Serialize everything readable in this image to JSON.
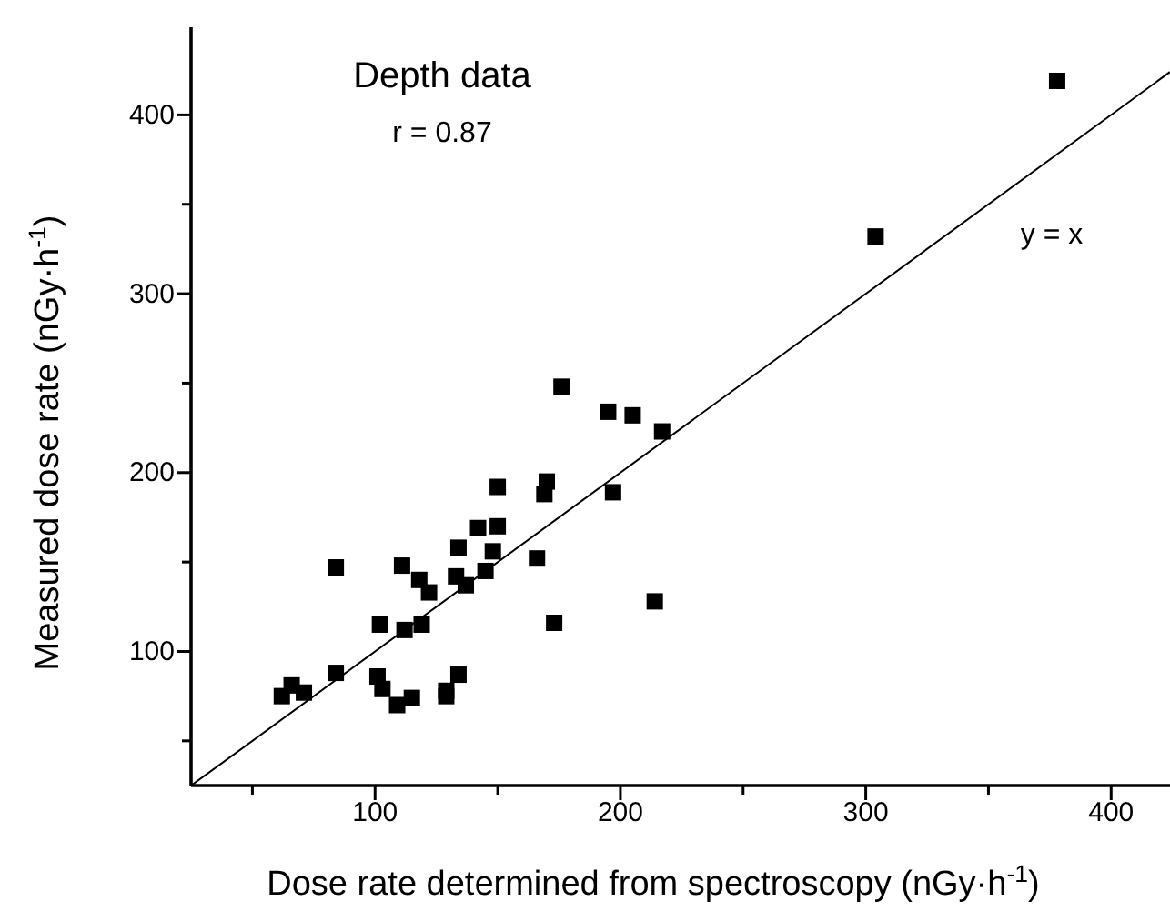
{
  "chart_data": {
    "type": "scatter",
    "xlabel": "Dose rate determined from spectroscopy (nGy·h$^{-1}$)",
    "ylabel": "Measured dose rate (nGy·h$^{-1}$)",
    "annotations": [
      "Depth data",
      "r = 0.87",
      "y = x"
    ],
    "xlim": [
      25,
      424
    ],
    "ylim": [
      25,
      449
    ],
    "xticks": [
      {
        "value": 50,
        "label": null
      },
      100,
      {
        "value": 150,
        "label": null
      },
      200,
      {
        "value": 250,
        "label": null
      },
      300,
      {
        "value": 350,
        "label": null
      },
      400
    ],
    "yticks": [
      {
        "value": 50,
        "label": null
      },
      100,
      {
        "value": 150,
        "label": null
      },
      200,
      {
        "value": 250,
        "label": null
      },
      300,
      {
        "value": 350,
        "label": null
      },
      400
    ],
    "grid": false,
    "marker": "square",
    "series": [
      {
        "color": "#000000",
        "x": [
          176,
          195,
          205,
          217,
          150,
          170,
          169,
          197,
          142,
          150,
          134,
          148,
          84,
          111,
          166,
          145,
          133,
          137,
          118,
          122,
          214,
          102,
          112,
          119,
          173,
          84,
          101,
          103,
          134,
          109,
          115,
          129,
          129,
          62,
          66,
          71,
          378,
          304
        ],
        "values": [
          248,
          234,
          232,
          223,
          192,
          195,
          188,
          189,
          169,
          170,
          158,
          156,
          147,
          148,
          152,
          145,
          142,
          137,
          140,
          133,
          128,
          115,
          112,
          115,
          116,
          88,
          86,
          79,
          87,
          70,
          74,
          78,
          75,
          75,
          81,
          77,
          419,
          332
        ]
      },
      {
        "type": "line",
        "color": "#000000",
        "x": [
          25,
          424
        ],
        "values": [
          25,
          424
        ],
        "line_style": "solid",
        "marker": "none"
      }
    ]
  }
}
